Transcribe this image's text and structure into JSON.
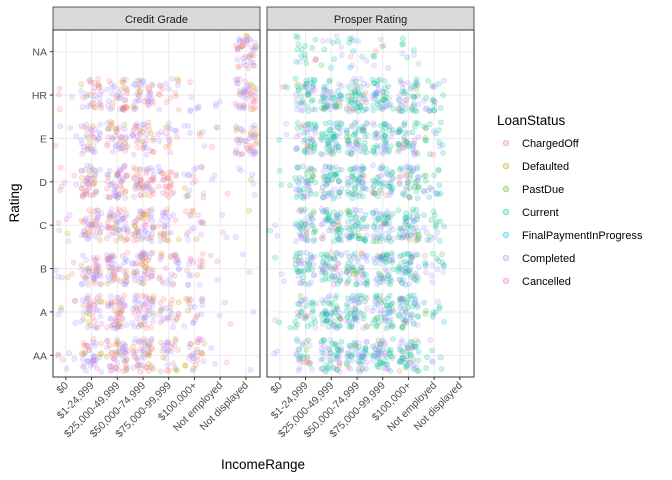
{
  "chart_data": {
    "type": "scatter",
    "jitter": true,
    "faceted": true,
    "point_alpha": 0.2,
    "grid": true,
    "legend_position": "right",
    "xlabel": "IncomeRange",
    "ylabel": "Rating",
    "x_categories": [
      "$0",
      "$1-24,999",
      "$25,000-49,999",
      "$50,000-74,999",
      "$75,000-99,999",
      "$100,000+",
      "Not employed",
      "Not displayed"
    ],
    "y_categories": [
      "AA",
      "A",
      "B",
      "C",
      "D",
      "E",
      "HR",
      "NA"
    ],
    "legend": {
      "title": "LoanStatus",
      "entries": [
        {
          "label": "ChargedOff",
          "color": "#F8766D"
        },
        {
          "label": "Defaulted",
          "color": "#C49A00"
        },
        {
          "label": "PastDue",
          "color": "#53B400"
        },
        {
          "label": "Current",
          "color": "#00C094"
        },
        {
          "label": "FinalPaymentInProgress",
          "color": "#00B6EB"
        },
        {
          "label": "Completed",
          "color": "#A58AFF"
        },
        {
          "label": "Cancelled",
          "color": "#FB61D7"
        }
      ]
    },
    "panels": [
      {
        "title": "Credit Grade",
        "density_by_rating": {
          "NA": [
            0,
            0,
            0,
            0,
            0,
            0,
            0,
            0.8
          ],
          "HR": [
            0.08,
            0.6,
            0.7,
            0.7,
            0.3,
            0.12,
            0.06,
            0.8
          ],
          "E": [
            0.08,
            0.6,
            0.7,
            0.7,
            0.3,
            0.12,
            0.06,
            0.8
          ],
          "D": [
            0.1,
            0.8,
            0.9,
            0.9,
            0.5,
            0.3,
            0.06,
            0.1
          ],
          "C": [
            0.1,
            0.8,
            0.9,
            0.9,
            0.5,
            0.3,
            0.06,
            0.04
          ],
          "B": [
            0.1,
            0.8,
            0.9,
            0.9,
            0.5,
            0.3,
            0.06,
            0.04
          ],
          "A": [
            0.1,
            0.7,
            0.9,
            0.9,
            0.45,
            0.35,
            0.06,
            0.02
          ],
          "AA": [
            0.1,
            0.7,
            0.9,
            0.9,
            0.5,
            0.5,
            0.06,
            0.02
          ]
        },
        "status_mix": {
          "ChargedOff": 0.3,
          "Defaulted": 0.12,
          "PastDue": 0,
          "Current": 0,
          "FinalPaymentInProgress": 0,
          "Completed": 0.55,
          "Cancelled": 0.03
        }
      },
      {
        "title": "Prosper Rating",
        "density_by_rating": {
          "NA": [
            0,
            0.3,
            0.2,
            0.2,
            0.15,
            0.15,
            0,
            0
          ],
          "HR": [
            0.05,
            0.8,
            0.9,
            0.9,
            0.8,
            0.8,
            0.4,
            0
          ],
          "E": [
            0.05,
            0.8,
            0.9,
            0.9,
            0.8,
            0.8,
            0.3,
            0
          ],
          "D": [
            0.05,
            0.8,
            0.9,
            0.9,
            0.8,
            0.8,
            0.3,
            0
          ],
          "C": [
            0.05,
            0.8,
            0.9,
            0.9,
            0.9,
            0.9,
            0.3,
            0
          ],
          "B": [
            0.05,
            0.8,
            0.9,
            0.9,
            0.9,
            0.9,
            0.3,
            0
          ],
          "A": [
            0.05,
            0.6,
            0.9,
            0.9,
            0.9,
            0.9,
            0.2,
            0
          ],
          "AA": [
            0.04,
            0.5,
            0.9,
            0.9,
            0.9,
            0.9,
            0.15,
            0
          ]
        },
        "status_mix": {
          "ChargedOff": 0.04,
          "Defaulted": 0.01,
          "PastDue": 0.02,
          "Current": 0.6,
          "FinalPaymentInProgress": 0.01,
          "Completed": 0.3,
          "Cancelled": 0.02
        }
      }
    ]
  }
}
